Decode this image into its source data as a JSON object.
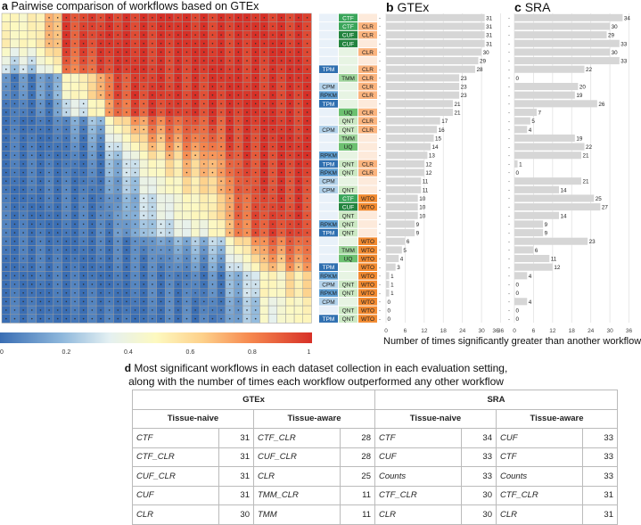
{
  "panel_a": {
    "letter": "a",
    "title": "Pairwise comparison of workflows based on GTEx",
    "colorbar_ticks": [
      "0",
      "0.2",
      "0.4",
      "0.6",
      "0.8",
      "1"
    ]
  },
  "panel_b": {
    "letter": "b",
    "title": "GTEx"
  },
  "panel_c": {
    "letter": "c",
    "title": "SRA"
  },
  "axis_title": "Number of times significantly greater than another workflow",
  "axis_ticks": [
    "0",
    "6",
    "12",
    "18",
    "24",
    "30",
    "36"
  ],
  "chart_data": {
    "type": "bar",
    "workflows": [
      [
        "",
        "CTF",
        ""
      ],
      [
        "",
        "CTF",
        "CLR"
      ],
      [
        "",
        "CUF",
        "CLR"
      ],
      [
        "",
        "CUF",
        ""
      ],
      [
        "",
        "",
        "CLR"
      ],
      [
        "",
        "",
        ""
      ],
      [
        "TPM",
        "",
        "CLR"
      ],
      [
        "",
        "TMM",
        "CLR"
      ],
      [
        "CPM",
        "",
        "CLR"
      ],
      [
        "RPKM",
        "",
        "CLR"
      ],
      [
        "TPM",
        "",
        ""
      ],
      [
        "",
        "UQ",
        "CLR"
      ],
      [
        "",
        "QNT",
        "CLR"
      ],
      [
        "CPM",
        "QNT",
        "CLR"
      ],
      [
        "",
        "TMM",
        ""
      ],
      [
        "",
        "UQ",
        ""
      ],
      [
        "RPKM",
        "",
        ""
      ],
      [
        "TPM",
        "QNT",
        "CLR"
      ],
      [
        "RPKM",
        "QNT",
        "CLR"
      ],
      [
        "CPM",
        "",
        ""
      ],
      [
        "CPM",
        "QNT",
        ""
      ],
      [
        "",
        "CTF",
        "WTO"
      ],
      [
        "",
        "CUF",
        "WTO"
      ],
      [
        "",
        "QNT",
        ""
      ],
      [
        "RPKM",
        "QNT",
        ""
      ],
      [
        "TPM",
        "QNT",
        ""
      ],
      [
        "",
        "",
        "WTO"
      ],
      [
        "",
        "TMM",
        "WTO"
      ],
      [
        "",
        "UQ",
        "WTO"
      ],
      [
        "TPM",
        "",
        "WTO"
      ],
      [
        "RPKM",
        "",
        "WTO"
      ],
      [
        "CPM",
        "QNT",
        "WTO"
      ],
      [
        "RPKM",
        "QNT",
        "WTO"
      ],
      [
        "CPM",
        "",
        "WTO"
      ],
      [
        "",
        "QNT",
        "WTO"
      ],
      [
        "TPM",
        "QNT",
        "WTO"
      ]
    ],
    "series": [
      {
        "name": "GTEx",
        "values": [
          31,
          31,
          31,
          31,
          30,
          29,
          28,
          23,
          23,
          23,
          21,
          21,
          17,
          16,
          15,
          14,
          13,
          12,
          12,
          11,
          11,
          10,
          10,
          10,
          9,
          9,
          6,
          5,
          4,
          3,
          1,
          1,
          1,
          0,
          0,
          0
        ]
      },
      {
        "name": "SRA",
        "values": [
          34,
          30,
          29,
          33,
          30,
          33,
          22,
          0,
          20,
          19,
          26,
          7,
          5,
          4,
          19,
          22,
          21,
          1,
          0,
          21,
          14,
          25,
          27,
          14,
          9,
          9,
          23,
          6,
          11,
          12,
          4,
          0,
          0,
          4,
          0,
          0
        ]
      }
    ],
    "xlim": [
      0,
      36
    ],
    "heatmap_range": [
      0,
      1
    ]
  },
  "colors": {
    "TPM": "#2f6fb0",
    "RPKM": "#5f9fd3",
    "CPM": "#b3d2ea",
    "none1": "#e9f1f9",
    "CTF": "#3aa55a",
    "CUF": "#23843f",
    "TMM": "#9ed49a",
    "UQ": "#6cc070",
    "QNT": "#cbe8c3",
    "none2": "#e7f4e3",
    "CLR": "#fbb47e",
    "WTO": "#f28a30",
    "none3": "#fdeadb",
    "bar": "#d6d6d6"
  },
  "panel_d": {
    "letter": "d",
    "title_line1": "Most significant workflows in each dataset collection in each evaluation setting,",
    "title_line2": "along with the number of times each workflow outperformed any other workflow",
    "groups": [
      "GTEx",
      "SRA"
    ],
    "settings": [
      "Tissue-naive",
      "Tissue-aware",
      "Tissue-naive",
      "Tissue-aware"
    ],
    "rows": [
      [
        "CTF",
        "31",
        "CTF_CLR",
        "28",
        "CTF",
        "34",
        "CUF",
        "33"
      ],
      [
        "CTF_CLR",
        "31",
        "CUF_CLR",
        "28",
        "CUF",
        "33",
        "CTF",
        "33"
      ],
      [
        "CUF_CLR",
        "31",
        "CLR",
        "25",
        "Counts",
        "33",
        "Counts",
        "33"
      ],
      [
        "CUF",
        "31",
        "TMM_CLR",
        "11",
        "CTF_CLR",
        "30",
        "CTF_CLR",
        "31"
      ],
      [
        "CLR",
        "30",
        "TMM",
        "11",
        "CLR",
        "30",
        "CLR",
        "31"
      ]
    ]
  }
}
